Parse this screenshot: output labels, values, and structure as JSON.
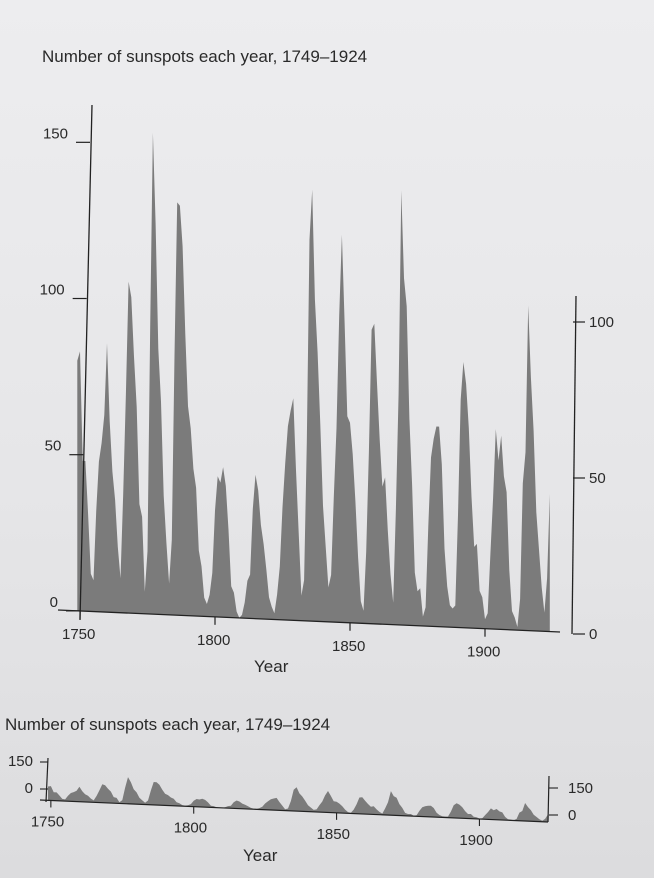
{
  "chart_data": [
    {
      "type": "area",
      "title": "Number of sunspots each year, 1749–1924",
      "xlabel": "Year",
      "ylabel": "",
      "xlim": [
        1749,
        1924
      ],
      "ylim": [
        0,
        150
      ],
      "x_ticks": [
        "1750",
        "1800",
        "1850",
        "1900"
      ],
      "y_ticks_left": [
        "0",
        "50",
        "100",
        "150"
      ],
      "y_ticks_right": [
        "0",
        "50",
        "100"
      ],
      "grid": false,
      "color": "#7b7b7b",
      "x": [
        1749,
        1750,
        1751,
        1752,
        1753,
        1754,
        1755,
        1756,
        1757,
        1758,
        1759,
        1760,
        1761,
        1762,
        1763,
        1764,
        1765,
        1766,
        1767,
        1768,
        1769,
        1770,
        1771,
        1772,
        1773,
        1774,
        1775,
        1776,
        1777,
        1778,
        1779,
        1780,
        1781,
        1782,
        1783,
        1784,
        1785,
        1786,
        1787,
        1788,
        1789,
        1790,
        1791,
        1792,
        1793,
        1794,
        1795,
        1796,
        1797,
        1798,
        1799,
        1800,
        1801,
        1802,
        1803,
        1804,
        1805,
        1806,
        1807,
        1808,
        1809,
        1810,
        1811,
        1812,
        1813,
        1814,
        1815,
        1816,
        1817,
        1818,
        1819,
        1820,
        1821,
        1822,
        1823,
        1824,
        1825,
        1826,
        1827,
        1828,
        1829,
        1830,
        1831,
        1832,
        1833,
        1834,
        1835,
        1836,
        1837,
        1838,
        1839,
        1840,
        1841,
        1842,
        1843,
        1844,
        1845,
        1846,
        1847,
        1848,
        1849,
        1850,
        1851,
        1852,
        1853,
        1854,
        1855,
        1856,
        1857,
        1858,
        1859,
        1860,
        1861,
        1862,
        1863,
        1864,
        1865,
        1866,
        1867,
        1868,
        1869,
        1870,
        1871,
        1872,
        1873,
        1874,
        1875,
        1876,
        1877,
        1878,
        1879,
        1880,
        1881,
        1882,
        1883,
        1884,
        1885,
        1886,
        1887,
        1888,
        1889,
        1890,
        1891,
        1892,
        1893,
        1894,
        1895,
        1896,
        1897,
        1898,
        1899,
        1900,
        1901,
        1902,
        1903,
        1904,
        1905,
        1906,
        1907,
        1908,
        1909,
        1910,
        1911,
        1912,
        1913,
        1914,
        1915,
        1916,
        1917,
        1918,
        1919,
        1920,
        1921,
        1922,
        1923,
        1924
      ],
      "values": [
        80,
        83,
        48,
        48,
        31,
        12,
        10,
        32,
        48,
        54,
        63,
        86,
        61,
        45,
        36,
        21,
        11,
        38,
        70,
        106,
        101,
        82,
        66,
        35,
        31,
        7,
        20,
        92,
        154,
        125,
        85,
        68,
        38,
        23,
        10,
        24,
        83,
        132,
        131,
        118,
        90,
        67,
        60,
        47,
        41,
        21,
        16,
        6,
        4,
        7,
        14,
        34,
        45,
        43,
        48,
        42,
        28,
        10,
        8,
        2,
        0,
        1,
        5,
        12,
        14,
        35,
        46,
        41,
        30,
        24,
        16,
        7,
        4,
        2,
        8,
        17,
        36,
        50,
        62,
        67,
        71,
        48,
        28,
        8,
        13,
        57,
        122,
        138,
        103,
        86,
        63,
        37,
        24,
        11,
        15,
        40,
        62,
        98,
        124,
        96,
        66,
        64,
        54,
        39,
        21,
        7,
        4,
        23,
        55,
        94,
        96,
        77,
        59,
        44,
        47,
        30,
        16,
        7,
        37,
        74,
        139,
        111,
        102,
        66,
        45,
        17,
        11,
        12,
        3,
        6,
        32,
        54,
        60,
        64,
        64,
        52,
        25,
        13,
        7,
        6,
        7,
        36,
        73,
        85,
        78,
        64,
        42,
        26,
        27,
        12,
        10,
        3,
        5,
        24,
        42,
        64,
        54,
        62,
        49,
        44,
        19,
        6,
        4,
        1,
        10,
        47,
        57,
        104,
        81,
        64,
        38,
        26,
        14,
        6,
        17,
        44
      ]
    },
    {
      "type": "area",
      "title": "Number of sunspots each year, 1749–1924",
      "xlabel": "Year",
      "ylabel": "",
      "xlim": [
        1749,
        1924
      ],
      "ylim": [
        0,
        150
      ],
      "x_ticks": [
        "1750",
        "1800",
        "1850",
        "1900"
      ],
      "y_ticks_left": [
        "150",
        "0"
      ],
      "y_ticks_right": [
        "150",
        "0"
      ],
      "grid": false,
      "color": "#7b7b7b",
      "note_series": "same series as above, vertically compressed"
    }
  ]
}
